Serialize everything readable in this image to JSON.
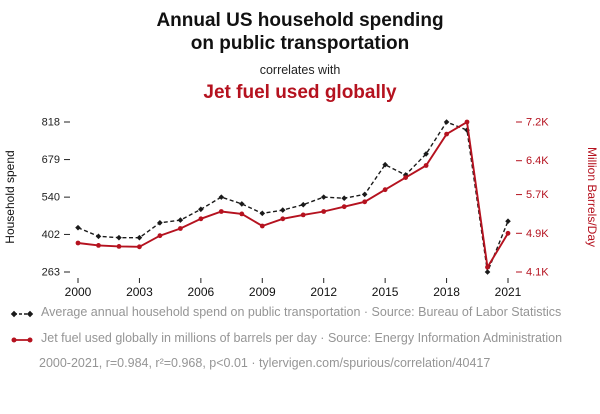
{
  "header": {
    "title_line1": "Annual US household spending",
    "title_line2": "on public transportation",
    "subtitle": "correlates with",
    "correlate_title": "Jet fuel used globally"
  },
  "colors": {
    "accent_red": "#b5121f",
    "series_black": "#1a1a1a",
    "muted_text": "#959595"
  },
  "chart_data": {
    "type": "line",
    "x": [
      2000,
      2001,
      2002,
      2003,
      2004,
      2005,
      2006,
      2007,
      2008,
      2009,
      2010,
      2011,
      2012,
      2013,
      2014,
      2015,
      2016,
      2017,
      2018,
      2019,
      2020,
      2021
    ],
    "x_range": [
      2000,
      2021
    ],
    "x_ticks": [
      2000,
      2003,
      2006,
      2009,
      2012,
      2015,
      2018,
      2021
    ],
    "left_axis": {
      "label": "Household spend",
      "ticks": [
        263,
        402,
        540,
        679,
        818
      ],
      "min": 263,
      "max": 818
    },
    "right_axis": {
      "label": "Million Barrels/Day",
      "ticks": [
        "4.1K",
        "4.9K",
        "5.7K",
        "6.4K",
        "7.2K"
      ],
      "tick_values": [
        4.1,
        4.9,
        5.7,
        6.4,
        7.2
      ],
      "min": 4.1,
      "max": 7.2
    },
    "series": [
      {
        "name": "Average annual household spend on public transportation",
        "axis": "left",
        "color": "#1a1a1a",
        "style": "dashed",
        "marker": "diamond",
        "values": [
          427,
          395,
          390,
          390,
          445,
          455,
          495,
          540,
          515,
          480,
          492,
          512,
          540,
          536,
          550,
          660,
          622,
          700,
          818,
          788,
          263,
          451
        ]
      },
      {
        "name": "Jet fuel used globally",
        "axis": "right",
        "color": "#b5121f",
        "style": "solid",
        "marker": "circle",
        "values": [
          4.7,
          4.65,
          4.63,
          4.62,
          4.85,
          5.0,
          5.2,
          5.35,
          5.3,
          5.05,
          5.2,
          5.28,
          5.35,
          5.45,
          5.55,
          5.8,
          6.05,
          6.3,
          6.95,
          7.2,
          4.2,
          4.9
        ]
      }
    ]
  },
  "legend": [
    {
      "text": "Average annual household spend on public transportation · Source: Bureau of Labor Statistics"
    },
    {
      "text": "Jet fuel used globally in millions of barrels per day · Source: Energy Information Administration"
    }
  ],
  "footer": "2000-2021, r=0.984, r²=0.968, p<0.01 · tylervigen.com/spurious/correlation/40417"
}
